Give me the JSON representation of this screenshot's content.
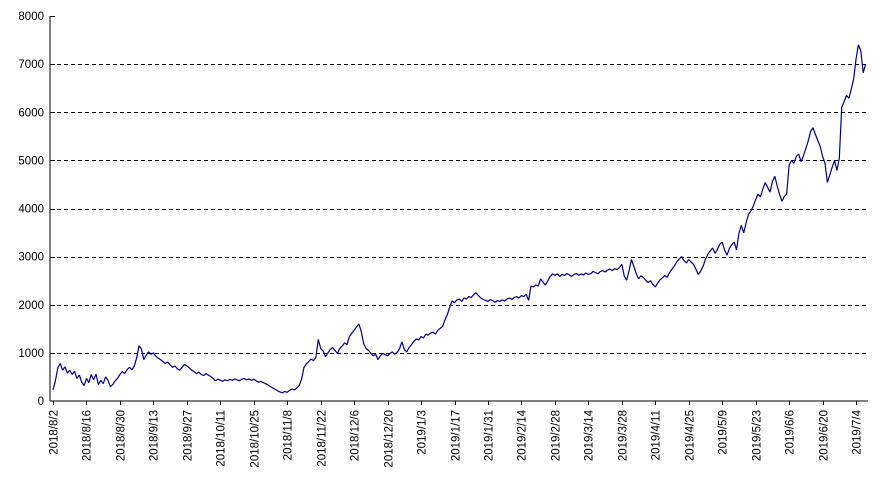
{
  "chart_data": {
    "type": "line",
    "title": "",
    "xlabel": "",
    "ylabel": "",
    "legend": "none",
    "grid": "horizontal-dashed",
    "line_color": "#000080",
    "axis_color": "#000000",
    "background_color": "#ffffff",
    "ylim": [
      0,
      8000
    ],
    "y_tick_step": 1000,
    "y_tick_labels": [
      "0",
      "1000",
      "2000",
      "3000",
      "4000",
      "5000",
      "6000",
      "7000",
      "8000"
    ],
    "x_tick_interval_days": 14,
    "x_tick_labels": [
      "2018/8/2",
      "2018/8/16",
      "2018/8/30",
      "2018/9/13",
      "2018/9/27",
      "2018/10/11",
      "2018/10/25",
      "2018/11/8",
      "2018/11/22",
      "2018/12/6",
      "2018/12/20",
      "2019/1/3",
      "2019/1/17",
      "2019/1/31",
      "2019/2/14",
      "2019/2/28",
      "2019/3/14",
      "2019/3/28",
      "2019/4/11",
      "2019/4/25",
      "2019/5/9",
      "2019/5/23",
      "2019/6/6",
      "2019/6/20",
      "2019/7/4"
    ],
    "x_start": "2018/8/2",
    "x_step_days": 1,
    "values": [
      230,
      420,
      690,
      780,
      640,
      710,
      580,
      640,
      550,
      620,
      470,
      540,
      390,
      320,
      470,
      380,
      550,
      440,
      560,
      340,
      430,
      360,
      500,
      430,
      300,
      340,
      420,
      470,
      550,
      610,
      570,
      650,
      700,
      650,
      730,
      900,
      1150,
      1080,
      860,
      950,
      1020,
      970,
      1000,
      930,
      890,
      860,
      820,
      780,
      810,
      750,
      700,
      730,
      670,
      640,
      700,
      760,
      730,
      690,
      640,
      610,
      570,
      600,
      550,
      530,
      570,
      540,
      510,
      470,
      420,
      450,
      430,
      410,
      440,
      420,
      450,
      430,
      460,
      440,
      420,
      450,
      470,
      440,
      460,
      430,
      450,
      420,
      390,
      410,
      380,
      360,
      330,
      300,
      270,
      240,
      210,
      190,
      170,
      200,
      180,
      220,
      250,
      230,
      270,
      320,
      450,
      700,
      770,
      820,
      870,
      840,
      910,
      1280,
      1090,
      1040,
      920,
      1000,
      1070,
      1110,
      1050,
      990,
      1090,
      1140,
      1210,
      1170,
      1340,
      1410,
      1470,
      1540,
      1600,
      1440,
      1190,
      1090,
      1050,
      990,
      940,
      970,
      860,
      940,
      990,
      960,
      940,
      990,
      1020,
      970,
      1010,
      1090,
      1230,
      1070,
      1020,
      1110,
      1170,
      1240,
      1290,
      1270,
      1340,
      1310,
      1390,
      1370,
      1410,
      1430,
      1390,
      1470,
      1510,
      1550,
      1690,
      1800,
      1950,
      2080,
      2040,
      2100,
      2120,
      2070,
      2140,
      2120,
      2170,
      2150,
      2210,
      2250,
      2190,
      2140,
      2110,
      2090,
      2070,
      2110,
      2080,
      2050,
      2090,
      2070,
      2100,
      2080,
      2120,
      2140,
      2110,
      2150,
      2170,
      2140,
      2190,
      2170,
      2220,
      2090,
      2390,
      2370,
      2410,
      2390,
      2540,
      2470,
      2410,
      2490,
      2590,
      2640,
      2610,
      2640,
      2590,
      2630,
      2610,
      2650,
      2620,
      2590,
      2630,
      2650,
      2610,
      2640,
      2620,
      2660,
      2630,
      2650,
      2690,
      2670,
      2640,
      2690,
      2710,
      2680,
      2720,
      2740,
      2710,
      2750,
      2730,
      2770,
      2840,
      2600,
      2510,
      2700,
      2940,
      2800,
      2650,
      2540,
      2600,
      2570,
      2510,
      2460,
      2500,
      2420,
      2370,
      2450,
      2520,
      2560,
      2610,
      2570,
      2670,
      2740,
      2810,
      2890,
      2950,
      3000,
      2920,
      2870,
      2940,
      2890,
      2840,
      2740,
      2630,
      2700,
      2800,
      2950,
      3050,
      3120,
      3180,
      3070,
      3150,
      3260,
      3300,
      3140,
      3030,
      3170,
      3250,
      3300,
      3140,
      3480,
      3650,
      3490,
      3700,
      3880,
      3950,
      4050,
      4190,
      4300,
      4240,
      4400,
      4540,
      4440,
      4340,
      4560,
      4670,
      4470,
      4290,
      4150,
      4250,
      4300,
      4900,
      5000,
      4940,
      5080,
      5130,
      4970,
      5100,
      5250,
      5400,
      5600,
      5680,
      5540,
      5410,
      5290,
      5080,
      4940,
      4540,
      4700,
      4850,
      5000,
      4790,
      5040,
      6100,
      6220,
      6350,
      6290,
      6480,
      6700,
      7100,
      7400,
      7280,
      6820,
      7000
    ]
  }
}
